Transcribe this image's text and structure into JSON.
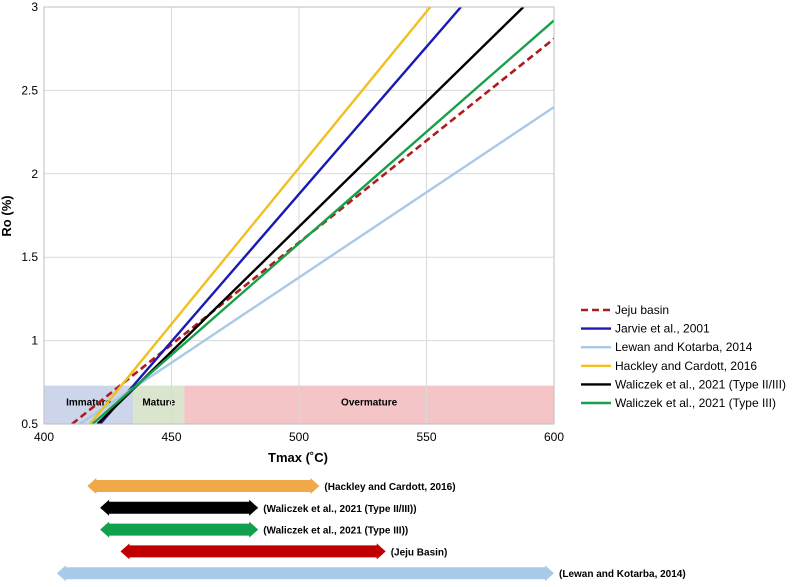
{
  "chart_data": {
    "type": "line",
    "title": "",
    "xlabel": "Tmax (˚C)",
    "ylabel": "Ro (%)",
    "xlim": [
      400,
      600
    ],
    "ylim": [
      0.5,
      3
    ],
    "x_ticks": [
      400,
      450,
      500,
      550,
      600
    ],
    "y_ticks": [
      0.5,
      1,
      1.5,
      2,
      2.5,
      3
    ],
    "x_tick_labels": [
      "400",
      "450",
      "500",
      "550",
      "600"
    ],
    "y_tick_labels": [
      "0.5",
      "1",
      "1.5",
      "2",
      "2.5",
      "3"
    ],
    "grid": true,
    "legend_position": "right",
    "series": [
      {
        "name": "Jeju basin",
        "color": "#b01c1c",
        "dash": true,
        "points": [
          [
            411,
            0.5
          ],
          [
            600,
            2.81
          ]
        ]
      },
      {
        "name": "Jarvie et al., 2001",
        "color": "#1a1ab4",
        "dash": false,
        "points": [
          [
            422,
            0.5
          ],
          [
            563.5,
            3.0
          ]
        ]
      },
      {
        "name": "Lewan and Kotarba, 2014",
        "color": "#a9c9e6",
        "dash": false,
        "points": [
          [
            414,
            0.5
          ],
          [
            600,
            2.4
          ]
        ]
      },
      {
        "name": "Hackley and Cardott, 2016",
        "color": "#f0c020",
        "dash": false,
        "points": [
          [
            418,
            0.5
          ],
          [
            551.5,
            3.0
          ]
        ]
      },
      {
        "name": "Waliczek et al., 2021 (Type II/III)",
        "color": "#000000",
        "dash": false,
        "points": [
          [
            421,
            0.5
          ],
          [
            588,
            3.0
          ]
        ]
      },
      {
        "name": "Waliczek et al., 2021 (Type III)",
        "color": "#17a04a",
        "dash": false,
        "points": [
          [
            419,
            0.5
          ],
          [
            600,
            2.92
          ]
        ]
      }
    ],
    "zones": [
      {
        "label": "Immature",
        "from": 400,
        "to": 435,
        "ymax": 0.73,
        "color": "#ccd5ea"
      },
      {
        "label": "Mature",
        "from": 435,
        "to": 455,
        "ymax": 0.73,
        "color": "#d9e5cc"
      },
      {
        "label": "Overmature",
        "from": 455,
        "to": 600,
        "ymax": 0.73,
        "color": "#f4c4c6"
      }
    ],
    "range_arrows": [
      {
        "label": "(Hackley and Cardott, 2016)",
        "from": 417,
        "to": 508,
        "color": "#f0a848"
      },
      {
        "label": "(Waliczek et al., 2021 (Type II/III))",
        "from": 422,
        "to": 484,
        "color": "#000000"
      },
      {
        "label": "(Waliczek et al., 2021 (Type III))",
        "from": 422,
        "to": 484,
        "color": "#11a04c"
      },
      {
        "label": "(Jeju Basin)",
        "from": 430,
        "to": 534,
        "color": "#c00000"
      },
      {
        "label": "(Lewan and Kotarba, 2014)",
        "from": 405,
        "to": 600,
        "color": "#a9cbea"
      }
    ]
  }
}
